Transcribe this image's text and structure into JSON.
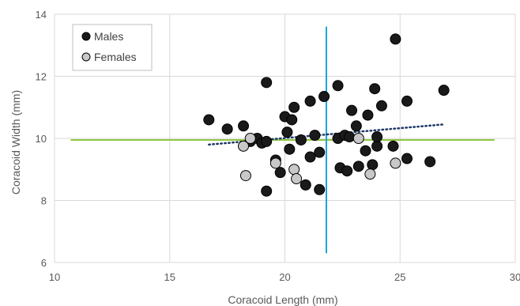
{
  "chart_data": {
    "type": "scatter",
    "xlabel": "Coracoid Length (mm)",
    "ylabel": "Coracoid Width (mm)",
    "xlim": [
      10,
      30
    ],
    "ylim": [
      6,
      14
    ],
    "x_ticks": [
      "10",
      "15",
      "20",
      "25",
      "30"
    ],
    "y_ticks": [
      "6",
      "8",
      "10",
      "12",
      "14"
    ],
    "grid": true,
    "legend_position": "top-left",
    "series": [
      {
        "name": "Males",
        "color": "#1a1a1a",
        "points": [
          [
            16.7,
            10.6
          ],
          [
            17.5,
            10.3
          ],
          [
            18.2,
            10.4
          ],
          [
            18.5,
            9.9
          ],
          [
            18.8,
            10.0
          ],
          [
            19.0,
            9.85
          ],
          [
            19.2,
            9.9
          ],
          [
            19.2,
            11.8
          ],
          [
            19.2,
            8.3
          ],
          [
            19.6,
            9.3
          ],
          [
            19.8,
            8.9
          ],
          [
            20.0,
            10.7
          ],
          [
            20.1,
            10.2
          ],
          [
            20.2,
            9.65
          ],
          [
            20.3,
            10.6
          ],
          [
            20.4,
            11.0
          ],
          [
            20.7,
            9.95
          ],
          [
            20.9,
            8.5
          ],
          [
            21.1,
            11.2
          ],
          [
            21.3,
            10.1
          ],
          [
            21.5,
            9.55
          ],
          [
            21.5,
            8.35
          ],
          [
            21.7,
            11.35
          ],
          [
            21.1,
            9.4
          ],
          [
            22.3,
            11.7
          ],
          [
            22.3,
            10.0
          ],
          [
            22.4,
            9.05
          ],
          [
            22.6,
            10.1
          ],
          [
            22.7,
            8.95
          ],
          [
            22.8,
            10.05
          ],
          [
            22.9,
            10.9
          ],
          [
            23.1,
            10.4
          ],
          [
            23.2,
            9.1
          ],
          [
            23.5,
            9.6
          ],
          [
            23.6,
            10.75
          ],
          [
            23.8,
            9.15
          ],
          [
            23.9,
            11.6
          ],
          [
            24.0,
            9.75
          ],
          [
            24.0,
            10.05
          ],
          [
            24.2,
            11.05
          ],
          [
            24.7,
            9.75
          ],
          [
            24.8,
            13.2
          ],
          [
            25.3,
            11.2
          ],
          [
            25.3,
            9.35
          ],
          [
            26.3,
            9.25
          ],
          [
            26.9,
            11.55
          ]
        ]
      },
      {
        "name": "Females",
        "color": "#c8c8c8",
        "points": [
          [
            18.2,
            9.75
          ],
          [
            18.3,
            8.8
          ],
          [
            18.5,
            10.0
          ],
          [
            19.6,
            9.2
          ],
          [
            20.4,
            9.0
          ],
          [
            20.5,
            8.7
          ],
          [
            23.2,
            10.0
          ],
          [
            23.7,
            8.85
          ],
          [
            24.8,
            9.2
          ]
        ]
      }
    ],
    "trendline": {
      "style": "dotted",
      "color": "#1f3864",
      "x": [
        16.7,
        26.9
      ],
      "y": [
        9.8,
        10.45
      ]
    },
    "reference_lines": [
      {
        "orientation": "horizontal",
        "value": 9.95,
        "x_range": [
          10.7,
          29.1
        ],
        "color": "#8dc63f"
      },
      {
        "orientation": "vertical",
        "value": 21.8,
        "y_range": [
          6.3,
          13.6
        ],
        "color": "#1ba3d6"
      }
    ]
  }
}
